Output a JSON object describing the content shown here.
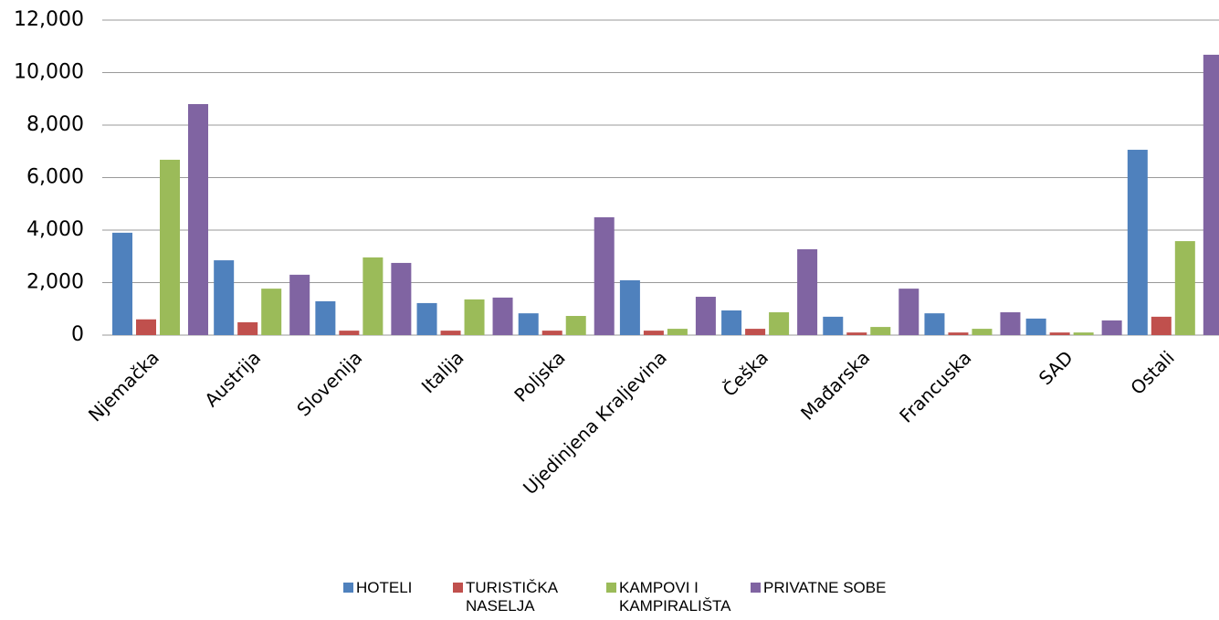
{
  "chart_data": {
    "type": "bar",
    "categories": [
      "Njemačka",
      "Austrija",
      "Slovenija",
      "Italija",
      "Poljska",
      "Ujedinjena Kraljevina",
      "Češka",
      "Mađarska",
      "Francuska",
      "SAD",
      "Ostali"
    ],
    "series": [
      {
        "name": "HOTELI",
        "color": "#4f81bd",
        "values": [
          3900,
          2850,
          1290,
          1220,
          830,
          2090,
          940,
          700,
          830,
          630,
          7060
        ]
      },
      {
        "name": "TURISTIČKA NASELJA",
        "color": "#c0504d",
        "values": [
          600,
          490,
          170,
          170,
          170,
          170,
          240,
          100,
          100,
          100,
          700
        ]
      },
      {
        "name": "KAMPOVI I KAMPIRALIŠTA",
        "color": "#9bbb59",
        "values": [
          6680,
          1770,
          2960,
          1360,
          730,
          240,
          870,
          310,
          240,
          100,
          3580
        ]
      },
      {
        "name": "PRIVATNE SOBE",
        "color": "#8064a2",
        "values": [
          8800,
          2300,
          2750,
          1430,
          4490,
          1460,
          3270,
          1770,
          870,
          560,
          10680
        ]
      }
    ],
    "ylim": [
      0,
      12000
    ],
    "yticks": [
      0,
      {
        "value": 2000,
        "label": "2,000"
      },
      {
        "value": 4000,
        "label": "4,000"
      },
      {
        "value": 6000,
        "label": "6,000"
      },
      {
        "value": 8000,
        "label": "8,000"
      },
      {
        "value": 10000,
        "label": "10,000"
      },
      {
        "value": 12000,
        "label": "12,000"
      }
    ],
    "grid": true,
    "legend": "bottom"
  }
}
